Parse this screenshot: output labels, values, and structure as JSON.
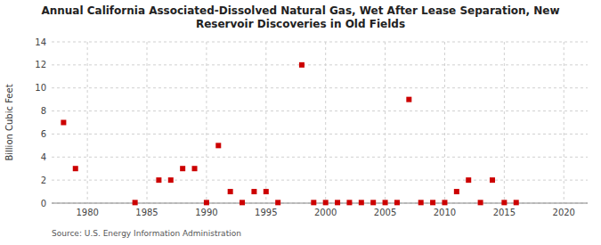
{
  "chart_data": {
    "type": "scatter",
    "title": "Annual California Associated-Dissolved Natural Gas, Wet After Lease Separation, New\nReservoir Discoveries in Old Fields",
    "ylabel": "Billion Cubic Feet",
    "source": "Source: U.S. Energy Information Administration",
    "color": "#cc0000",
    "marker": "square",
    "grid": true,
    "xlim": [
      1977,
      2022
    ],
    "ylim": [
      0,
      14
    ],
    "xticks": [
      1980,
      1985,
      1990,
      1995,
      2000,
      2005,
      2010,
      2015,
      2020
    ],
    "yticks": [
      0,
      2,
      4,
      6,
      8,
      10,
      12,
      14
    ],
    "x": [
      1978,
      1979,
      1984,
      1986,
      1987,
      1988,
      1989,
      1990,
      1991,
      1992,
      1993,
      1994,
      1995,
      1996,
      1998,
      1999,
      2000,
      2001,
      2002,
      2003,
      2004,
      2005,
      2006,
      2007,
      2008,
      2009,
      2010,
      2011,
      2012,
      2013,
      2014,
      2015,
      2016
    ],
    "values": [
      7.0,
      3.0,
      0.05,
      2.0,
      2.0,
      3.0,
      3.0,
      0.05,
      5.0,
      1.0,
      0.05,
      1.0,
      1.0,
      0.05,
      12.0,
      0.05,
      0.05,
      0.05,
      0.05,
      0.05,
      0.05,
      0.05,
      0.05,
      9.0,
      0.05,
      0.05,
      0.05,
      1.0,
      2.0,
      0.05,
      2.0,
      0.05,
      0.05
    ]
  }
}
